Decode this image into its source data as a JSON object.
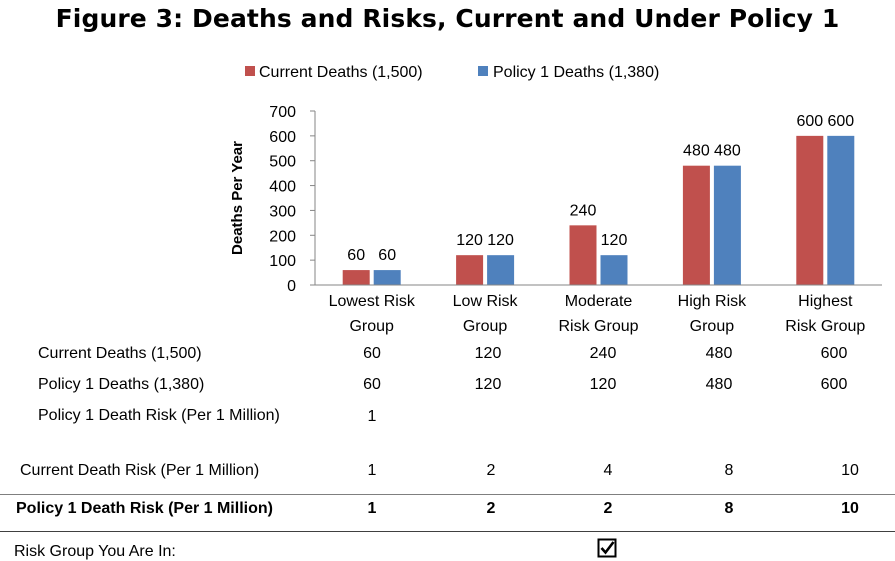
{
  "figure_title": "Figure 3: Deaths and Risks, Current and Under Policy 1",
  "chart_data": {
    "type": "bar",
    "title": "Figure 3: Deaths and Risks, Current and Under Policy 1",
    "categories": [
      [
        "Lowest Risk",
        "Group"
      ],
      [
        "Low Risk",
        "Group"
      ],
      [
        "Moderate",
        "Risk Group"
      ],
      [
        "High Risk",
        "Group"
      ],
      [
        "Highest",
        "Risk Group"
      ]
    ],
    "series": [
      {
        "name": "Current Deaths (1,500)",
        "values": [
          60,
          120,
          240,
          480,
          600
        ],
        "color": "#c0504d"
      },
      {
        "name": "Policy 1 Deaths (1,380)",
        "values": [
          60,
          120,
          120,
          480,
          600
        ],
        "color": "#4f81bd"
      }
    ],
    "ylabel": "Deaths Per Year",
    "xlabel": "",
    "ylim": [
      0,
      700
    ],
    "yticks": [
      0,
      100,
      200,
      300,
      400,
      500,
      600,
      700
    ],
    "legend_position": "top",
    "grid": false
  },
  "table": {
    "rows": [
      {
        "label": "Current Deaths (1,500)",
        "values": [
          "60",
          "120",
          "240",
          "480",
          "600"
        ]
      },
      {
        "label": "Policy 1 Deaths (1,380)",
        "values": [
          "60",
          "120",
          "120",
          "480",
          "600"
        ]
      },
      {
        "label": "Policy 1 Death Risk (Per 1 Million)",
        "values": [
          "1",
          "",
          "",
          "",
          ""
        ]
      },
      {
        "label": "Current Death Risk (Per 1 Million)",
        "values": [
          "1",
          "2",
          "4",
          "8",
          "10"
        ]
      },
      {
        "label": "Policy 1 Death Risk (Per 1 Million)",
        "values": [
          "1",
          "2",
          "2",
          "8",
          "10"
        ]
      }
    ],
    "risk_group_label": "Risk Group You Are In:",
    "selected_group_index": 2
  },
  "icons": {
    "selected": "checkbox-checked-icon"
  }
}
